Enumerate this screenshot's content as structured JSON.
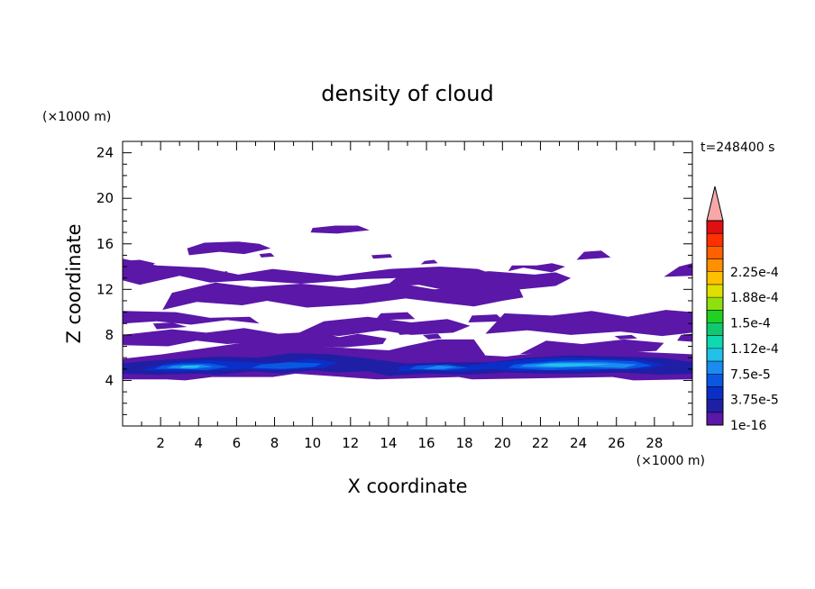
{
  "chart_data": {
    "type": "heatmap",
    "title": "density of cloud",
    "xlabel": "X coordinate",
    "ylabel": "Z coordinate",
    "x_unit": "(×1000 m)",
    "y_unit": "(×1000 m)",
    "time_label": "t=248400 s",
    "xlim": [
      0,
      30
    ],
    "ylim": [
      0,
      25
    ],
    "x_ticks": [
      2,
      4,
      6,
      8,
      10,
      12,
      14,
      16,
      18,
      20,
      22,
      24,
      26,
      28
    ],
    "y_ticks": [
      4,
      8,
      12,
      16,
      20,
      24
    ],
    "grid": false,
    "colorbar": {
      "labels": [
        "1e-16",
        "3.75e-5",
        "7.5e-5",
        "1.12e-4",
        "1.5e-4",
        "1.88e-4",
        "2.25e-4"
      ],
      "colors": [
        "#5a17a8",
        "#1f1fa5",
        "#0a2ec8",
        "#0a58e2",
        "#1a8cf0",
        "#22c1ea",
        "#10d8b0",
        "#10c870",
        "#22d022",
        "#90e010",
        "#e0e000",
        "#ffc000",
        "#ff9000",
        "#ff6000",
        "#ff3000",
        "#e01010",
        "#f6a8a8"
      ]
    },
    "regions": [
      {
        "level": 1,
        "x": [
          0,
          2.3,
          3.3,
          4.7,
          7.9,
          9.1,
          13.4,
          15.6,
          17.7,
          18.4,
          25.8,
          26.9,
          30,
          30,
          24.5,
          21.7,
          20.2,
          10.1,
          8.8,
          7.1,
          2.1,
          0
        ],
        "y": [
          4.1,
          4.1,
          4.0,
          4.3,
          4.3,
          4.6,
          4.1,
          4.2,
          4.3,
          4.1,
          4.3,
          4.0,
          4.1,
          6.3,
          6.7,
          6.4,
          6.1,
          7.0,
          7.4,
          7.5,
          6.3,
          5.9
        ]
      },
      {
        "level": 1,
        "x": [
          9.9,
          12.4,
          13.9,
          14.9,
          16.6,
          18.5,
          19.1,
          14.1,
          11.2,
          9.9
        ],
        "y": [
          7.1,
          6.4,
          6.6,
          7.0,
          7.6,
          7.6,
          6.2,
          6.3,
          6.8,
          7.1
        ]
      },
      {
        "level": 1,
        "x": [
          0,
          0.9,
          3.0,
          4.6,
          6.6,
          9.4,
          12.8,
          16.5,
          19.2,
          19.4,
          18.7,
          16.7,
          14.1,
          11.3,
          7.9,
          6.1,
          4.3,
          1.8,
          0
        ],
        "y": [
          12.8,
          12.4,
          13.2,
          12.6,
          12.8,
          12.5,
          12.9,
          13.1,
          12.8,
          13.4,
          13.8,
          14.0,
          13.8,
          13.2,
          13.8,
          13.3,
          13.9,
          14.1,
          14.7
        ]
      },
      {
        "level": 1,
        "x": [
          2.1,
          3.9,
          6.3,
          7.6,
          9.7,
          12.6,
          14.9,
          16.9,
          18.5,
          20.0,
          21.1,
          20.9,
          19.1,
          16.4,
          14.3,
          12.1,
          9.4,
          6.8,
          4.9,
          2.6
        ],
        "y": [
          10.2,
          10.9,
          10.6,
          11.0,
          10.4,
          10.7,
          11.2,
          10.8,
          10.5,
          11.0,
          11.3,
          12.0,
          12.3,
          12.0,
          12.6,
          12.1,
          12.5,
          12.2,
          12.6,
          11.7
        ]
      },
      {
        "level": 1,
        "x": [
          13.8,
          15.6,
          17.1,
          18.7,
          20.3,
          22.8,
          23.6,
          22.8,
          21.7,
          19.3,
          16.9,
          14.7
        ],
        "y": [
          12.2,
          12.4,
          11.9,
          12.1,
          11.9,
          12.3,
          13.0,
          13.5,
          13.3,
          13.6,
          13.3,
          13.4
        ]
      },
      {
        "level": 1,
        "x": [
          0,
          1.8,
          3.6,
          5.5,
          7.2,
          6.7,
          4.6,
          2.8,
          0
        ],
        "y": [
          9.0,
          9.2,
          8.9,
          9.3,
          9.0,
          9.6,
          9.5,
          10.0,
          10.1
        ]
      },
      {
        "level": 1,
        "x": [
          9.3,
          11.4,
          13.6,
          15.2,
          17.4,
          18.3,
          17.1,
          15.2,
          12.9,
          10.6
        ],
        "y": [
          8.2,
          7.9,
          8.4,
          8.0,
          8.2,
          8.8,
          9.4,
          9.1,
          9.6,
          9.2
        ]
      },
      {
        "level": 1,
        "x": [
          19.1,
          21.3,
          23.6,
          26.2,
          28.4,
          30,
          30,
          28.6,
          26.6,
          24.7,
          22.6,
          20.1
        ],
        "y": [
          8.1,
          8.4,
          8.0,
          8.3,
          7.9,
          8.2,
          10.0,
          10.2,
          9.6,
          10.1,
          9.7,
          9.9
        ]
      },
      {
        "level": 1,
        "x": [
          20.4,
          22.4,
          22.1,
          20.7
        ],
        "y": [
          8.5,
          8.6,
          9.3,
          9.2
        ]
      },
      {
        "level": 1,
        "x": [
          13.3,
          15.4,
          15.0,
          13.6
        ],
        "y": [
          9.3,
          9.4,
          10.0,
          9.9
        ]
      },
      {
        "level": 1,
        "x": [
          18.2,
          20.1,
          19.7,
          18.4
        ],
        "y": [
          9.1,
          9.2,
          9.8,
          9.7
        ]
      },
      {
        "level": 1,
        "x": [
          1.8,
          3.4,
          2.6,
          1.6
        ],
        "y": [
          8.5,
          8.7,
          9.1,
          9.0
        ]
      },
      {
        "level": 1,
        "x": [
          0,
          2.4,
          3.9,
          5.5,
          7.3,
          9.1,
          11.6,
          13.7,
          13.9,
          12.4,
          11.4,
          10.3,
          8.2,
          6.4,
          4.4,
          2.6,
          0
        ],
        "y": [
          7.1,
          7.0,
          7.5,
          7.2,
          7.4,
          7.0,
          6.9,
          7.2,
          7.7,
          8.1,
          7.8,
          8.3,
          8.1,
          8.6,
          8.2,
          8.5,
          8.0
        ]
      },
      {
        "level": 1,
        "x": [
          20.9,
          23.4,
          26.2,
          28.1,
          28.5,
          26.4,
          24.2,
          22.3
        ],
        "y": [
          6.3,
          6.5,
          6.4,
          6.6,
          7.3,
          7.6,
          7.2,
          7.5
        ]
      },
      {
        "level": 1,
        "x": [
          29.2,
          30,
          30,
          29.4
        ],
        "y": [
          7.5,
          7.4,
          8.1,
          8.0
        ]
      },
      {
        "level": 1,
        "x": [
          16.1,
          16.8,
          16.6,
          15.8
        ],
        "y": [
          7.6,
          7.7,
          8.1,
          8.0
        ]
      },
      {
        "level": 1,
        "x": [
          14.6,
          15.4,
          15.1,
          14.4
        ],
        "y": [
          8.0,
          8.1,
          8.5,
          8.4
        ]
      },
      {
        "level": 1,
        "x": [
          26.2,
          27.1,
          26.8,
          25.9
        ],
        "y": [
          7.6,
          7.7,
          8.0,
          7.9
        ]
      },
      {
        "level": 1,
        "x": [
          3.5,
          5.1,
          6.4,
          7.8,
          7.2,
          6.1,
          4.3,
          3.4
        ],
        "y": [
          15.0,
          15.3,
          15.1,
          15.6,
          16.0,
          16.2,
          16.1,
          15.6
        ]
      },
      {
        "level": 1,
        "x": [
          9.9,
          11.3,
          13.0,
          12.4,
          11.2,
          10.0
        ],
        "y": [
          17.0,
          16.9,
          17.2,
          17.6,
          17.6,
          17.4
        ]
      },
      {
        "level": 1,
        "x": [
          0,
          1.3,
          1.7,
          0.9,
          0
        ],
        "y": [
          13.6,
          13.7,
          14.3,
          14.6,
          14.5
        ]
      },
      {
        "level": 1,
        "x": [
          15.7,
          16.6,
          16.4,
          15.9
        ],
        "y": [
          14.2,
          14.3,
          14.6,
          14.5
        ]
      },
      {
        "level": 1,
        "x": [
          20.3,
          21.1,
          22.6,
          23.3,
          22.6,
          21.8,
          20.5
        ],
        "y": [
          13.6,
          13.9,
          13.5,
          14.0,
          14.3,
          14.1,
          14.1
        ]
      },
      {
        "level": 1,
        "x": [
          13.2,
          14.2,
          14.1,
          13.1
        ],
        "y": [
          14.7,
          14.8,
          15.1,
          15.0
        ]
      },
      {
        "level": 1,
        "x": [
          23.9,
          25.7,
          25.2,
          24.3
        ],
        "y": [
          14.6,
          14.8,
          15.4,
          15.3
        ]
      },
      {
        "level": 1,
        "x": [
          28.5,
          30,
          30,
          29.3
        ],
        "y": [
          13.1,
          13.2,
          14.3,
          14.0
        ]
      },
      {
        "level": 1,
        "x": [
          5.1,
          5.6,
          5.5,
          5.1
        ],
        "y": [
          13.1,
          13.2,
          13.6,
          13.5
        ]
      },
      {
        "level": 1,
        "x": [
          7.3,
          8.0,
          7.8,
          7.2
        ],
        "y": [
          14.8,
          14.9,
          15.2,
          15.1
        ]
      },
      {
        "level": 2,
        "x": [
          0,
          1.9,
          3.8,
          5.1,
          6.9,
          8.4,
          10.0,
          11.3,
          12.9,
          14.0,
          16.1,
          18.2,
          20.1,
          22.2,
          24.1,
          26.3,
          28.3,
          30,
          30,
          28.4,
          25.9,
          23.6,
          21.3,
          19.4,
          17.2,
          14.9,
          12.6,
          10.9,
          8.9,
          7.1,
          5.2,
          3.1,
          1.1,
          0
        ],
        "y": [
          4.6,
          4.5,
          4.6,
          4.5,
          4.8,
          4.6,
          4.9,
          4.7,
          4.8,
          4.4,
          4.6,
          4.5,
          4.7,
          4.6,
          4.6,
          4.7,
          4.5,
          4.6,
          5.6,
          6.0,
          6.1,
          6.2,
          6.0,
          5.6,
          5.6,
          5.5,
          6.0,
          6.3,
          6.4,
          6.0,
          6.1,
          5.9,
          5.7,
          5.5
        ]
      },
      {
        "level": 3,
        "x": [
          1.0,
          2.8,
          4.9,
          6.4,
          7.6,
          9.4,
          10.6,
          11.4,
          9.8,
          8.2,
          6.5,
          4.4,
          2.3
        ],
        "y": [
          4.9,
          4.8,
          4.9,
          5.0,
          4.9,
          5.0,
          5.1,
          5.6,
          5.9,
          5.5,
          5.6,
          5.8,
          5.5
        ]
      },
      {
        "level": 3,
        "x": [
          14.5,
          16.3,
          17.8,
          19.4,
          20.8,
          22.4,
          24.2,
          26.1,
          27.6,
          28.5,
          27.3,
          25.3,
          23.4,
          21.6,
          19.7,
          18.1,
          16.2,
          14.6
        ],
        "y": [
          4.8,
          4.9,
          4.8,
          5.0,
          4.8,
          4.9,
          4.8,
          5.0,
          5.0,
          5.4,
          5.8,
          5.9,
          6.0,
          5.9,
          5.6,
          5.3,
          5.4,
          5.2
        ]
      },
      {
        "level": 4,
        "x": [
          1.7,
          3.2,
          4.4,
          5.6,
          4.6,
          3.2,
          2.1
        ],
        "y": [
          5.0,
          5.0,
          4.9,
          5.2,
          5.5,
          5.5,
          5.3
        ]
      },
      {
        "level": 4,
        "x": [
          6.8,
          8.4,
          10.1,
          10.5,
          8.7,
          7.3
        ],
        "y": [
          5.1,
          5.0,
          5.2,
          5.5,
          5.6,
          5.4
        ]
      },
      {
        "level": 4,
        "x": [
          15.1,
          16.9,
          18.2,
          17.1,
          15.5
        ],
        "y": [
          5.0,
          4.9,
          5.1,
          5.4,
          5.3
        ]
      },
      {
        "level": 4,
        "x": [
          20.3,
          22.4,
          24.4,
          26.6,
          27.9,
          26.9,
          24.7,
          22.6,
          20.6
        ],
        "y": [
          5.1,
          4.9,
          5.0,
          5.0,
          5.3,
          5.7,
          5.8,
          5.7,
          5.4
        ]
      },
      {
        "level": 5,
        "x": [
          2.3,
          3.6,
          4.8,
          4.1,
          2.7
        ],
        "y": [
          5.1,
          5.0,
          5.2,
          5.4,
          5.3
        ]
      },
      {
        "level": 5,
        "x": [
          20.9,
          22.5,
          24.3,
          26.4,
          27.1,
          25.3,
          23.1,
          21.2
        ],
        "y": [
          5.2,
          5.1,
          5.2,
          5.1,
          5.4,
          5.6,
          5.6,
          5.4
        ]
      },
      {
        "level": 5,
        "x": [
          15.8,
          16.9,
          17.6,
          16.6
        ],
        "y": [
          5.0,
          5.0,
          5.2,
          5.3
        ]
      },
      {
        "level": 6,
        "x": [
          21.7,
          23.0,
          24.6,
          25.7,
          24.2,
          22.5
        ],
        "y": [
          5.3,
          5.2,
          5.3,
          5.4,
          5.5,
          5.5
        ]
      },
      {
        "level": 6,
        "x": [
          3.0,
          3.9,
          4.1,
          3.2
        ],
        "y": [
          5.1,
          5.1,
          5.3,
          5.3
        ]
      }
    ]
  }
}
